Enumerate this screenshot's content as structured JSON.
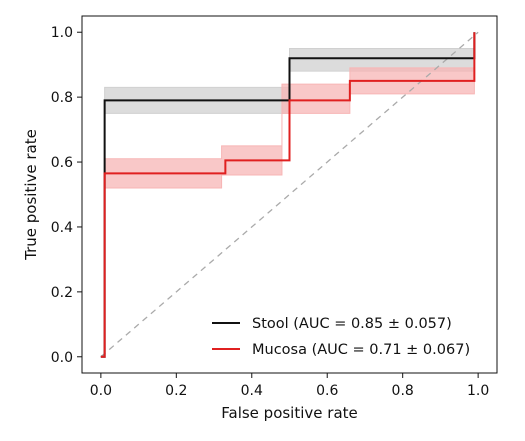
{
  "chart_data": {
    "type": "line",
    "title": "",
    "xlabel": "False positive rate",
    "ylabel": "True positive rate",
    "xlim": [
      -0.05,
      1.05
    ],
    "ylim": [
      -0.05,
      1.05
    ],
    "xticks": [
      0.0,
      0.2,
      0.4,
      0.6,
      0.8,
      1.0
    ],
    "yticks": [
      0.0,
      0.2,
      0.4,
      0.6,
      0.8,
      1.0
    ],
    "xtick_labels": [
      "0.0",
      "0.2",
      "0.4",
      "0.6",
      "0.8",
      "1.0"
    ],
    "ytick_labels": [
      "0.0",
      "0.2",
      "0.4",
      "0.6",
      "0.8",
      "1.0"
    ],
    "grid": false,
    "legend_position": "lower-right",
    "reference_line": {
      "x": [
        0,
        1
      ],
      "y": [
        0,
        1
      ],
      "color": "#aaaaaa",
      "style": "dashed"
    },
    "series": [
      {
        "name": "Stool (AUC = 0.85 ± 0.057)",
        "color": "#111111",
        "band_color": "#d0d0d0",
        "x": [
          0.0,
          0.01,
          0.01,
          0.5,
          0.5,
          0.99,
          0.99
        ],
        "y": [
          0.0,
          0.0,
          0.79,
          0.79,
          0.92,
          0.92,
          1.0
        ],
        "band_x": [
          0.01,
          0.01,
          0.5,
          0.5,
          0.99,
          0.99
        ],
        "band_lower": [
          0.75,
          0.75,
          0.75,
          0.88,
          0.88,
          0.88
        ],
        "band_upper": [
          0.83,
          0.83,
          0.83,
          0.95,
          0.95,
          0.95
        ]
      },
      {
        "name": "Mucosa (AUC = 0.71 ± 0.067)",
        "color": "#e02020",
        "band_color": "#f7b5b5",
        "x": [
          0.0,
          0.01,
          0.01,
          0.33,
          0.33,
          0.5,
          0.5,
          0.66,
          0.66,
          0.99,
          0.99
        ],
        "y": [
          0.0,
          0.0,
          0.565,
          0.565,
          0.605,
          0.605,
          0.79,
          0.79,
          0.85,
          0.85,
          1.0
        ],
        "band_x": [
          0.01,
          0.01,
          0.32,
          0.32,
          0.48,
          0.48,
          0.66,
          0.66,
          0.99,
          0.99
        ],
        "band_lower": [
          0.52,
          0.52,
          0.52,
          0.56,
          0.56,
          0.75,
          0.75,
          0.81,
          0.81,
          0.81
        ],
        "band_upper": [
          0.61,
          0.61,
          0.61,
          0.65,
          0.65,
          0.84,
          0.84,
          0.89,
          0.89,
          0.89
        ]
      }
    ]
  }
}
